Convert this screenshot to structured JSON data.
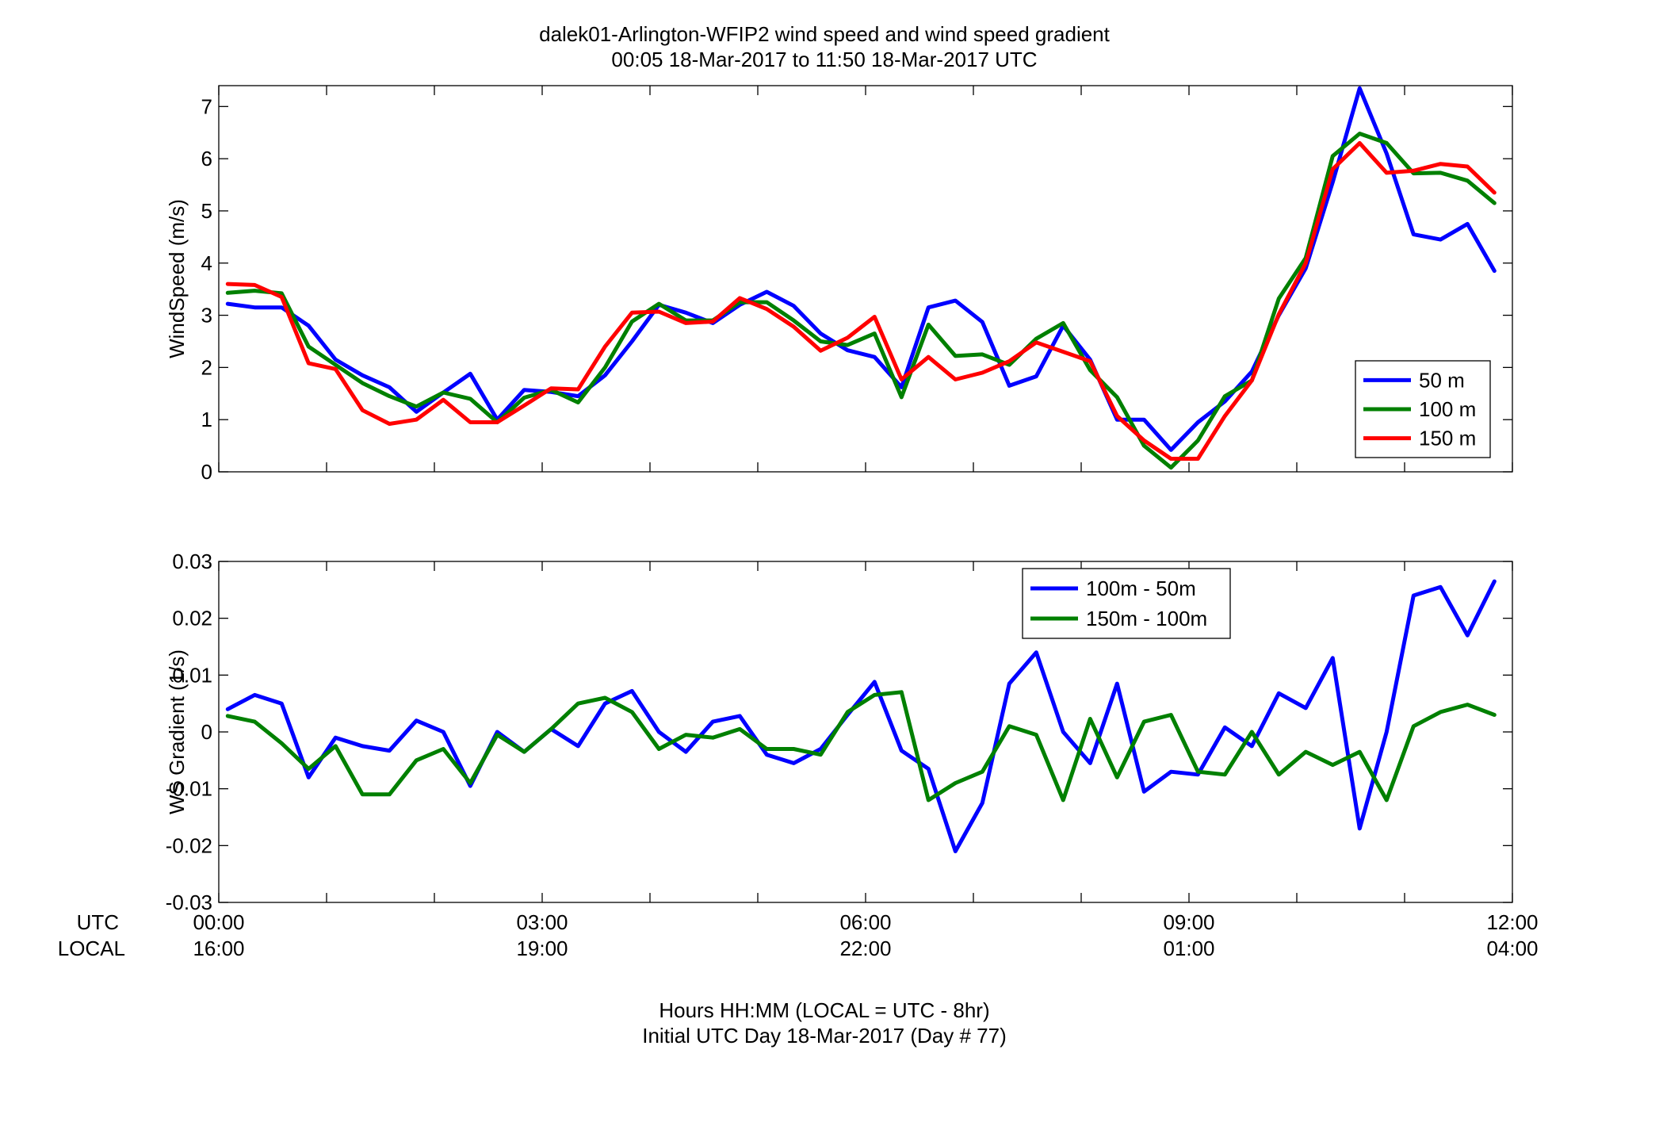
{
  "title_line1": "dalek01-Arlington-WFIP2  wind speed and wind speed gradient",
  "title_line2": "00:05 18-Mar-2017 to 11:50 18-Mar-2017  UTC",
  "row_label_utc": "UTC",
  "row_label_local": "LOCAL",
  "xlabel_line1": "Hours HH:MM  (LOCAL = UTC - 8hr)",
  "xlabel_line2": "Initial UTC Day 18-Mar-2017 (Day # 77)",
  "colors": {
    "blue": "#0000ff",
    "green": "#008000",
    "red": "#ff0000"
  },
  "chart_data": [
    {
      "type": "line",
      "ylabel": "WindSpeed (m/s)",
      "xlim": [
        0,
        12
      ],
      "ylim": [
        0,
        7.4
      ],
      "x_ticks_utc": [
        "00:00",
        "03:00",
        "06:00",
        "09:00",
        "12:00"
      ],
      "x_ticks_local": [
        "16:00",
        "19:00",
        "22:00",
        "01:00",
        "04:00"
      ],
      "y_ticks": [
        "0",
        "1",
        "2",
        "3",
        "4",
        "5",
        "6",
        "7"
      ],
      "grid": false,
      "legend_position": "lower-right",
      "x": [
        0.083,
        0.333,
        0.583,
        0.833,
        1.083,
        1.333,
        1.583,
        1.833,
        2.083,
        2.333,
        2.583,
        2.833,
        3.083,
        3.333,
        3.583,
        3.833,
        4.083,
        4.333,
        4.583,
        4.833,
        5.083,
        5.333,
        5.583,
        5.833,
        6.083,
        6.333,
        6.583,
        6.833,
        7.083,
        7.333,
        7.583,
        7.833,
        8.083,
        8.333,
        8.583,
        8.833,
        9.083,
        9.333,
        9.583,
        9.833,
        10.083,
        10.333,
        10.583,
        10.833,
        11.083,
        11.333,
        11.583,
        11.833
      ],
      "series": [
        {
          "name": "50 m",
          "color": "blue",
          "values": [
            3.22,
            3.15,
            3.15,
            2.8,
            2.15,
            1.85,
            1.62,
            1.15,
            1.52,
            1.88,
            1.0,
            1.57,
            1.53,
            1.45,
            1.85,
            2.5,
            3.2,
            3.05,
            2.85,
            3.2,
            3.45,
            3.18,
            2.65,
            2.33,
            2.2,
            1.62,
            3.15,
            3.28,
            2.87,
            1.65,
            1.83,
            2.8,
            2.15,
            1.0,
            1.0,
            0.42,
            0.95,
            1.35,
            1.92,
            3.0,
            3.9,
            5.55,
            7.35,
            6.1,
            4.55,
            4.45,
            4.75,
            3.85
          ]
        },
        {
          "name": "100 m",
          "color": "green",
          "values": [
            3.43,
            3.47,
            3.42,
            2.4,
            2.05,
            1.7,
            1.45,
            1.25,
            1.52,
            1.4,
            0.95,
            1.42,
            1.57,
            1.33,
            2.0,
            2.88,
            3.22,
            2.9,
            2.9,
            3.25,
            3.25,
            2.9,
            2.5,
            2.43,
            2.65,
            1.43,
            2.82,
            2.22,
            2.25,
            2.05,
            2.55,
            2.85,
            1.95,
            1.43,
            0.5,
            0.08,
            0.6,
            1.45,
            1.75,
            3.32,
            4.1,
            6.05,
            6.48,
            6.3,
            5.72,
            5.73,
            5.58,
            5.15
          ]
        },
        {
          "name": "150 m",
          "color": "red",
          "values": [
            3.6,
            3.58,
            3.35,
            2.08,
            1.97,
            1.18,
            0.92,
            1.0,
            1.38,
            0.95,
            0.95,
            1.27,
            1.6,
            1.58,
            2.4,
            3.05,
            3.07,
            2.85,
            2.88,
            3.33,
            3.12,
            2.78,
            2.32,
            2.57,
            2.97,
            1.77,
            2.2,
            1.77,
            1.9,
            2.12,
            2.48,
            2.3,
            2.12,
            1.07,
            0.6,
            0.25,
            0.25,
            1.07,
            1.75,
            3.02,
            4.0,
            5.8,
            6.3,
            5.73,
            5.77,
            5.9,
            5.85,
            5.35
          ]
        }
      ]
    },
    {
      "type": "line",
      "ylabel": "WS Gradient (1/s)",
      "xlim": [
        0,
        12
      ],
      "ylim": [
        -0.03,
        0.03
      ],
      "x_ticks_utc": [
        "00:00",
        "03:00",
        "06:00",
        "09:00",
        "12:00"
      ],
      "x_ticks_local": [
        "16:00",
        "19:00",
        "22:00",
        "01:00",
        "04:00"
      ],
      "y_ticks": [
        "-0.03",
        "-0.02",
        "-0.01",
        "0",
        "0.01",
        "0.02",
        "0.03"
      ],
      "grid": false,
      "legend_position": "top-right",
      "x": [
        0.083,
        0.333,
        0.583,
        0.833,
        1.083,
        1.333,
        1.583,
        1.833,
        2.083,
        2.333,
        2.583,
        2.833,
        3.083,
        3.333,
        3.583,
        3.833,
        4.083,
        4.333,
        4.583,
        4.833,
        5.083,
        5.333,
        5.583,
        5.833,
        6.083,
        6.333,
        6.583,
        6.833,
        7.083,
        7.333,
        7.583,
        7.833,
        8.083,
        8.333,
        8.583,
        8.833,
        9.083,
        9.333,
        9.583,
        9.833,
        10.083,
        10.333,
        10.583,
        10.833,
        11.083,
        11.333,
        11.583,
        11.833
      ],
      "series": [
        {
          "name": "100m - 50m",
          "color": "blue",
          "values": [
            0.004,
            0.0065,
            0.005,
            -0.008,
            -0.001,
            -0.0025,
            -0.0033,
            0.002,
            0.0,
            -0.0095,
            0.0,
            -0.0035,
            0.0005,
            -0.0025,
            0.005,
            0.0072,
            0.0,
            -0.0035,
            0.0018,
            0.0028,
            -0.004,
            -0.0055,
            -0.003,
            0.003,
            0.0088,
            -0.0033,
            -0.0065,
            -0.021,
            -0.0125,
            0.0085,
            0.014,
            0.0,
            -0.0055,
            0.0085,
            -0.0105,
            -0.007,
            -0.0075,
            0.0008,
            -0.0025,
            0.0068,
            0.0042,
            0.013,
            -0.017,
            0.0,
            0.024,
            0.0255,
            0.017,
            0.0265
          ]
        },
        {
          "name": "150m - 100m",
          "color": "green",
          "values": [
            0.0028,
            0.0018,
            -0.002,
            -0.0065,
            -0.0025,
            -0.011,
            -0.011,
            -0.005,
            -0.003,
            -0.009,
            -0.0005,
            -0.0035,
            0.0005,
            0.005,
            0.006,
            0.0035,
            -0.003,
            -0.0005,
            -0.001,
            0.0005,
            -0.003,
            -0.003,
            -0.004,
            0.0035,
            0.0065,
            0.007,
            -0.012,
            -0.009,
            -0.007,
            0.001,
            -0.0005,
            -0.012,
            0.0023,
            -0.008,
            0.0018,
            0.003,
            -0.007,
            -0.0075,
            0.0,
            -0.0075,
            -0.0035,
            -0.0058,
            -0.0035,
            -0.012,
            0.001,
            0.0035,
            0.0048,
            0.003
          ]
        }
      ]
    }
  ]
}
